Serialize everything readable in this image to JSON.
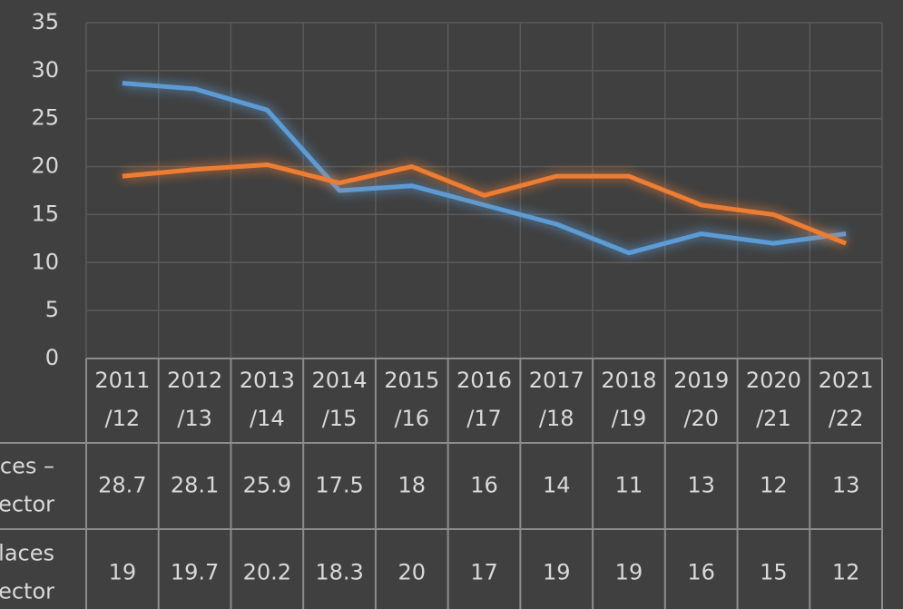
{
  "chart_data": {
    "type": "line",
    "categories": [
      [
        "2011",
        "/12"
      ],
      [
        "2012",
        "/13"
      ],
      [
        "2013",
        "/14"
      ],
      [
        "2014",
        "/15"
      ],
      [
        "2015",
        "/16"
      ],
      [
        "2016",
        "/17"
      ],
      [
        "2017",
        "/18"
      ],
      [
        "2018",
        "/19"
      ],
      [
        "2019",
        "/20"
      ],
      [
        "2020",
        "/21"
      ],
      [
        "2021",
        "/22"
      ]
    ],
    "series": [
      {
        "name": [
          "laces –",
          "ector"
        ],
        "color": "#5b9bd5",
        "values": [
          28.7,
          28.1,
          25.9,
          17.5,
          18,
          16,
          14,
          11,
          13,
          12,
          13
        ]
      },
      {
        "name": [
          "laces",
          "Sector"
        ],
        "color": "#ed7d31",
        "values": [
          19,
          19.7,
          20.2,
          18.3,
          20,
          17,
          19,
          19,
          16,
          15,
          12
        ]
      }
    ],
    "ylim": [
      0,
      35
    ],
    "yticks": [
      0,
      5,
      10,
      15,
      20,
      25,
      30,
      35
    ],
    "grid": true,
    "data_table": true
  }
}
